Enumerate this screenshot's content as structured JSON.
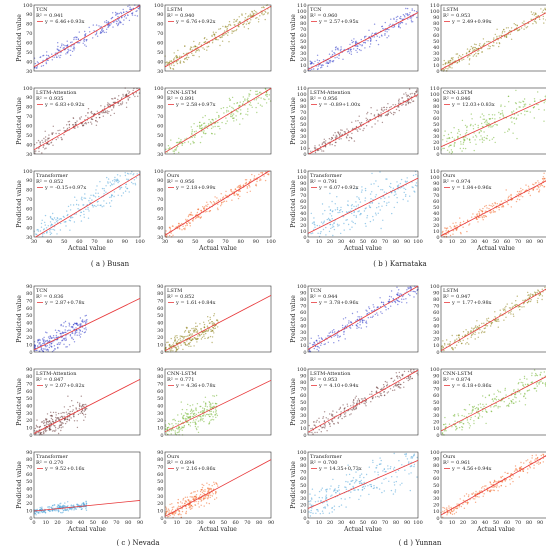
{
  "colors": {
    "fit_line": "#e8383a",
    "TCN": "#2f3bc8",
    "LSTM": "#8a7d12",
    "LSTM-Attention": "#6b3a3a",
    "CNN-LSTM": "#72b432",
    "Transformer": "#4aa3d8",
    "Ours": "#f36a2a"
  },
  "groups": [
    {
      "caption": "( a ) Busan"
    },
    {
      "caption": "( b ) Karnataka"
    },
    {
      "caption": "( c ) Nevada"
    },
    {
      "caption": "( d ) Yunnan"
    }
  ],
  "chart_data": [
    {
      "type": "scatter",
      "group": 0,
      "model": "TCN",
      "r2": "R² = 0.941",
      "equation": "y = 6.46+0.93x",
      "ylabel": "Predicted value",
      "xlabel": "",
      "x_ticks": [],
      "y_ticks": [
        "100",
        "90",
        "80",
        "70",
        "60",
        "50",
        "40",
        "30"
      ],
      "xlim": [
        30,
        100
      ],
      "ylim": [
        30,
        100
      ],
      "slope": 0.93,
      "intercept": 6.46,
      "spread": 0.06,
      "fit_color": "TCN"
    },
    {
      "type": "scatter",
      "group": 0,
      "model": "LSTM",
      "r2": "R² = 0.940",
      "equation": "y = 6.76+0.92x",
      "ylabel": "",
      "xlabel": "",
      "x_ticks": [],
      "y_ticks": [
        "100",
        "90",
        "80",
        "70",
        "60",
        "50",
        "40",
        "30"
      ],
      "xlim": [
        30,
        100
      ],
      "ylim": [
        30,
        100
      ],
      "slope": 0.92,
      "intercept": 6.76,
      "spread": 0.06
    },
    {
      "type": "scatter",
      "group": 0,
      "model": "LSTM-Attention",
      "r2": "R² = 0.935",
      "equation": "y = 6.83+0.92x",
      "ylabel": "Predicted value",
      "xlabel": "",
      "x_ticks": [],
      "y_ticks": [
        "100",
        "90",
        "80",
        "70",
        "60",
        "50",
        "40",
        "30"
      ],
      "xlim": [
        30,
        100
      ],
      "ylim": [
        30,
        100
      ],
      "slope": 0.92,
      "intercept": 6.83,
      "spread": 0.06
    },
    {
      "type": "scatter",
      "group": 0,
      "model": "CNN-LSTM",
      "r2": "R² = 0.891",
      "equation": "y = 2.58+0.97x",
      "ylabel": "",
      "xlabel": "",
      "x_ticks": [],
      "y_ticks": [
        "100",
        "90",
        "80",
        "70",
        "60",
        "50",
        "40",
        "30"
      ],
      "xlim": [
        30,
        100
      ],
      "ylim": [
        30,
        100
      ],
      "slope": 0.97,
      "intercept": 2.58,
      "spread": 0.09
    },
    {
      "type": "scatter",
      "group": 0,
      "model": "Transformer",
      "r2": "R² = 0.852",
      "equation": "y = -0.15+0.97x",
      "ylabel": "Predicted value",
      "xlabel": "Actual value",
      "x_ticks": [
        "30",
        "40",
        "50",
        "60",
        "70",
        "80",
        "90",
        "100"
      ],
      "y_ticks": [
        "100",
        "90",
        "80",
        "70",
        "60",
        "50",
        "40",
        "30"
      ],
      "xlim": [
        30,
        100
      ],
      "ylim": [
        30,
        100
      ],
      "slope": 0.97,
      "intercept": -0.15,
      "spread": 0.11
    },
    {
      "type": "scatter",
      "group": 0,
      "model": "Ours",
      "r2": "R² = 0.956",
      "equation": "y = 2.18+0.99x",
      "ylabel": "",
      "xlabel": "Actual value",
      "x_ticks": [
        "30",
        "40",
        "50",
        "60",
        "70",
        "80",
        "90",
        "100"
      ],
      "y_ticks": [
        "100",
        "90",
        "80",
        "70",
        "60",
        "50",
        "40",
        "30"
      ],
      "xlim": [
        30,
        100
      ],
      "ylim": [
        30,
        100
      ],
      "slope": 0.99,
      "intercept": 2.18,
      "spread": 0.05
    },
    {
      "type": "scatter",
      "group": 1,
      "model": "TCN",
      "r2": "R² = 0.960",
      "equation": "y = 2.57+0.95x",
      "ylabel": "Predicted value",
      "xlabel": "",
      "x_ticks": [],
      "y_ticks": [
        "110",
        "100",
        "90",
        "80",
        "70",
        "60",
        "50",
        "40",
        "30",
        "20",
        "10",
        "0"
      ],
      "xlim": [
        0,
        100
      ],
      "ylim": [
        0,
        110
      ],
      "slope": 0.95,
      "intercept": 2.57,
      "spread": 0.06
    },
    {
      "type": "scatter",
      "group": 1,
      "model": "LSTM",
      "r2": "R² = 0.953",
      "equation": "y = 2.49+0.99x",
      "ylabel": "",
      "xlabel": "",
      "x_ticks": [],
      "y_ticks": [
        "110",
        "100",
        "90",
        "80",
        "70",
        "60",
        "50",
        "40",
        "30",
        "20",
        "10",
        "0"
      ],
      "xlim": [
        0,
        100
      ],
      "ylim": [
        0,
        110
      ],
      "slope": 0.99,
      "intercept": 2.49,
      "spread": 0.06
    },
    {
      "type": "scatter",
      "group": 1,
      "model": "LSTM-Attention",
      "r2": "R² = 0.956",
      "equation": "y = -0.89+1.00x",
      "ylabel": "Predicted value",
      "xlabel": "",
      "x_ticks": [],
      "y_ticks": [
        "110",
        "100",
        "90",
        "80",
        "70",
        "60",
        "50",
        "40",
        "30",
        "20",
        "10",
        "0"
      ],
      "xlim": [
        0,
        100
      ],
      "ylim": [
        0,
        110
      ],
      "slope": 1.0,
      "intercept": -0.89,
      "spread": 0.06
    },
    {
      "type": "scatter",
      "group": 1,
      "model": "CNN-LSTM",
      "r2": "R² = 0.846",
      "equation": "y = 12.03+0.83x",
      "ylabel": "",
      "xlabel": "",
      "x_ticks": [],
      "y_ticks": [
        "110",
        "100",
        "90",
        "80",
        "70",
        "60",
        "50",
        "40",
        "30",
        "20",
        "10",
        "0"
      ],
      "xlim": [
        0,
        100
      ],
      "ylim": [
        0,
        110
      ],
      "slope": 0.83,
      "intercept": 12.03,
      "spread": 0.12
    },
    {
      "type": "scatter",
      "group": 1,
      "model": "Transformer",
      "r2": "R² = 0.791",
      "equation": "y = 6.07+0.92x",
      "ylabel": "Predicted value",
      "xlabel": "Actual value",
      "x_ticks": [
        "0",
        "10",
        "20",
        "30",
        "40",
        "50",
        "60",
        "70",
        "80",
        "90",
        "100"
      ],
      "y_ticks": [
        "110",
        "100",
        "90",
        "80",
        "70",
        "60",
        "50",
        "40",
        "30",
        "20",
        "10",
        "0"
      ],
      "xlim": [
        0,
        100
      ],
      "ylim": [
        0,
        110
      ],
      "slope": 0.92,
      "intercept": 6.07,
      "spread": 0.16
    },
    {
      "type": "scatter",
      "group": 1,
      "model": "Ours",
      "r2": "R² = 0.974",
      "equation": "y = 1.84+0.96x",
      "ylabel": "",
      "xlabel": "Actual value",
      "x_ticks": [
        "0",
        "10",
        "20",
        "30",
        "40",
        "50",
        "60",
        "70",
        "80",
        "90",
        "100"
      ],
      "y_ticks": [
        "110",
        "100",
        "90",
        "80",
        "70",
        "60",
        "50",
        "40",
        "30",
        "20",
        "10",
        "0"
      ],
      "xlim": [
        0,
        100
      ],
      "ylim": [
        0,
        110
      ],
      "slope": 0.96,
      "intercept": 1.84,
      "spread": 0.05
    },
    {
      "type": "scatter",
      "group": 2,
      "model": "TCN",
      "r2": "R² = 0.836",
      "equation": "y = 2.87+0.78x",
      "ylabel": "Predicted value",
      "xlabel": "",
      "x_ticks": [],
      "y_ticks": [
        "90",
        "80",
        "70",
        "60",
        "50",
        "40",
        "30",
        "20",
        "10",
        "0"
      ],
      "xlim": [
        0,
        90
      ],
      "ylim": [
        0,
        90
      ],
      "slope": 0.78,
      "intercept": 2.87,
      "spread": 0.08,
      "xmax_data": 45
    },
    {
      "type": "scatter",
      "group": 2,
      "model": "LSTM",
      "r2": "R² = 0.852",
      "equation": "y = 1.61+0.84x",
      "ylabel": "",
      "xlabel": "",
      "x_ticks": [],
      "y_ticks": [
        "90",
        "80",
        "70",
        "60",
        "50",
        "40",
        "30",
        "20",
        "10",
        "0"
      ],
      "xlim": [
        0,
        90
      ],
      "ylim": [
        0,
        90
      ],
      "slope": 0.84,
      "intercept": 1.61,
      "spread": 0.08,
      "xmax_data": 45
    },
    {
      "type": "scatter",
      "group": 2,
      "model": "LSTM-Attention",
      "r2": "R² = 0.847",
      "equation": "y = 2.07+0.82x",
      "ylabel": "Predicted value",
      "xlabel": "",
      "x_ticks": [],
      "y_ticks": [
        "90",
        "80",
        "70",
        "60",
        "50",
        "40",
        "30",
        "20",
        "10",
        "0"
      ],
      "xlim": [
        0,
        90
      ],
      "ylim": [
        0,
        90
      ],
      "slope": 0.82,
      "intercept": 2.07,
      "spread": 0.08,
      "xmax_data": 45
    },
    {
      "type": "scatter",
      "group": 2,
      "model": "CNN-LSTM",
      "r2": "R² = 0.771",
      "equation": "y = 4.36+0.78x",
      "ylabel": "",
      "xlabel": "",
      "x_ticks": [],
      "y_ticks": [
        "90",
        "80",
        "70",
        "60",
        "50",
        "40",
        "30",
        "20",
        "10",
        "0"
      ],
      "xlim": [
        0,
        90
      ],
      "ylim": [
        0,
        90
      ],
      "slope": 0.78,
      "intercept": 4.36,
      "spread": 0.1,
      "xmax_data": 45
    },
    {
      "type": "scatter",
      "group": 2,
      "model": "Transformer",
      "r2": "R² = 0.270",
      "equation": "y = 9.52+0.16x",
      "ylabel": "Predicted value",
      "xlabel": "Actual value",
      "x_ticks": [
        "0",
        "10",
        "20",
        "30",
        "40",
        "50",
        "60",
        "70",
        "80",
        "90"
      ],
      "y_ticks": [
        "90",
        "80",
        "70",
        "60",
        "50",
        "40",
        "30",
        "20",
        "10",
        "0"
      ],
      "xlim": [
        0,
        90
      ],
      "ylim": [
        0,
        90
      ],
      "slope": 0.16,
      "intercept": 9.52,
      "spread": 0.03,
      "xmax_data": 45
    },
    {
      "type": "scatter",
      "group": 2,
      "model": "Ours",
      "r2": "R² = 0.894",
      "equation": "y = 2.16+0.86x",
      "ylabel": "",
      "xlabel": "Actual value",
      "x_ticks": [
        "0",
        "10",
        "20",
        "30",
        "40",
        "50",
        "60",
        "70",
        "80",
        "90"
      ],
      "y_ticks": [
        "90",
        "80",
        "70",
        "60",
        "50",
        "40",
        "30",
        "20",
        "10",
        "0"
      ],
      "xlim": [
        0,
        90
      ],
      "ylim": [
        0,
        90
      ],
      "slope": 0.86,
      "intercept": 2.16,
      "spread": 0.07,
      "xmax_data": 45
    },
    {
      "type": "scatter",
      "group": 3,
      "model": "TCN",
      "r2": "R² = 0.944",
      "equation": "y = 3.78+0.96x",
      "ylabel": "Predicted value",
      "xlabel": "",
      "x_ticks": [],
      "y_ticks": [
        "100",
        "90",
        "80",
        "70",
        "60",
        "50",
        "40",
        "30",
        "20",
        "10",
        "0"
      ],
      "xlim": [
        0,
        100
      ],
      "ylim": [
        0,
        100
      ],
      "slope": 0.96,
      "intercept": 3.78,
      "spread": 0.06
    },
    {
      "type": "scatter",
      "group": 3,
      "model": "LSTM",
      "r2": "R² = 0.947",
      "equation": "y = 1.77+0.98x",
      "ylabel": "",
      "xlabel": "",
      "x_ticks": [],
      "y_ticks": [
        "100",
        "90",
        "80",
        "70",
        "60",
        "50",
        "40",
        "30",
        "20",
        "10",
        "0"
      ],
      "xlim": [
        0,
        100
      ],
      "ylim": [
        0,
        100
      ],
      "slope": 0.98,
      "intercept": 1.77,
      "spread": 0.06
    },
    {
      "type": "scatter",
      "group": 3,
      "model": "LSTM-Attention",
      "r2": "R² = 0.953",
      "equation": "y = 4.10+0.94x",
      "ylabel": "Predicted value",
      "xlabel": "",
      "x_ticks": [],
      "y_ticks": [
        "100",
        "90",
        "80",
        "70",
        "60",
        "50",
        "40",
        "30",
        "20",
        "10",
        "0"
      ],
      "xlim": [
        0,
        100
      ],
      "ylim": [
        0,
        100
      ],
      "slope": 0.94,
      "intercept": 4.1,
      "spread": 0.06
    },
    {
      "type": "scatter",
      "group": 3,
      "model": "CNN-LSTM",
      "r2": "R² = 0.874",
      "equation": "y = 6.18+0.86x",
      "ylabel": "",
      "xlabel": "",
      "x_ticks": [],
      "y_ticks": [
        "100",
        "90",
        "80",
        "70",
        "60",
        "50",
        "40",
        "30",
        "20",
        "10",
        "0"
      ],
      "xlim": [
        0,
        100
      ],
      "ylim": [
        0,
        100
      ],
      "slope": 0.86,
      "intercept": 6.18,
      "spread": 0.09
    },
    {
      "type": "scatter",
      "group": 3,
      "model": "Transformer",
      "r2": "R² = 0.700",
      "equation": "y = 14.35+0.73x",
      "ylabel": "Predicted value",
      "xlabel": "Actual value",
      "x_ticks": [
        "0",
        "10",
        "20",
        "30",
        "40",
        "50",
        "60",
        "70",
        "80",
        "90",
        "100"
      ],
      "y_ticks": [
        "100",
        "90",
        "80",
        "70",
        "60",
        "50",
        "40",
        "30",
        "20",
        "10",
        "0"
      ],
      "xlim": [
        0,
        100
      ],
      "ylim": [
        0,
        100
      ],
      "slope": 0.73,
      "intercept": 14.35,
      "spread": 0.14
    },
    {
      "type": "scatter",
      "group": 3,
      "model": "Ours",
      "r2": "R² = 0.961",
      "equation": "y = 4.56+0.94x",
      "ylabel": "",
      "xlabel": "Actual value",
      "x_ticks": [
        "0",
        "10",
        "20",
        "30",
        "40",
        "50",
        "60",
        "70",
        "80",
        "90",
        "100"
      ],
      "y_ticks": [
        "100",
        "90",
        "80",
        "70",
        "60",
        "50",
        "40",
        "30",
        "20",
        "10",
        "0"
      ],
      "xlim": [
        0,
        100
      ],
      "ylim": [
        0,
        100
      ],
      "slope": 0.94,
      "intercept": 4.56,
      "spread": 0.05
    }
  ]
}
